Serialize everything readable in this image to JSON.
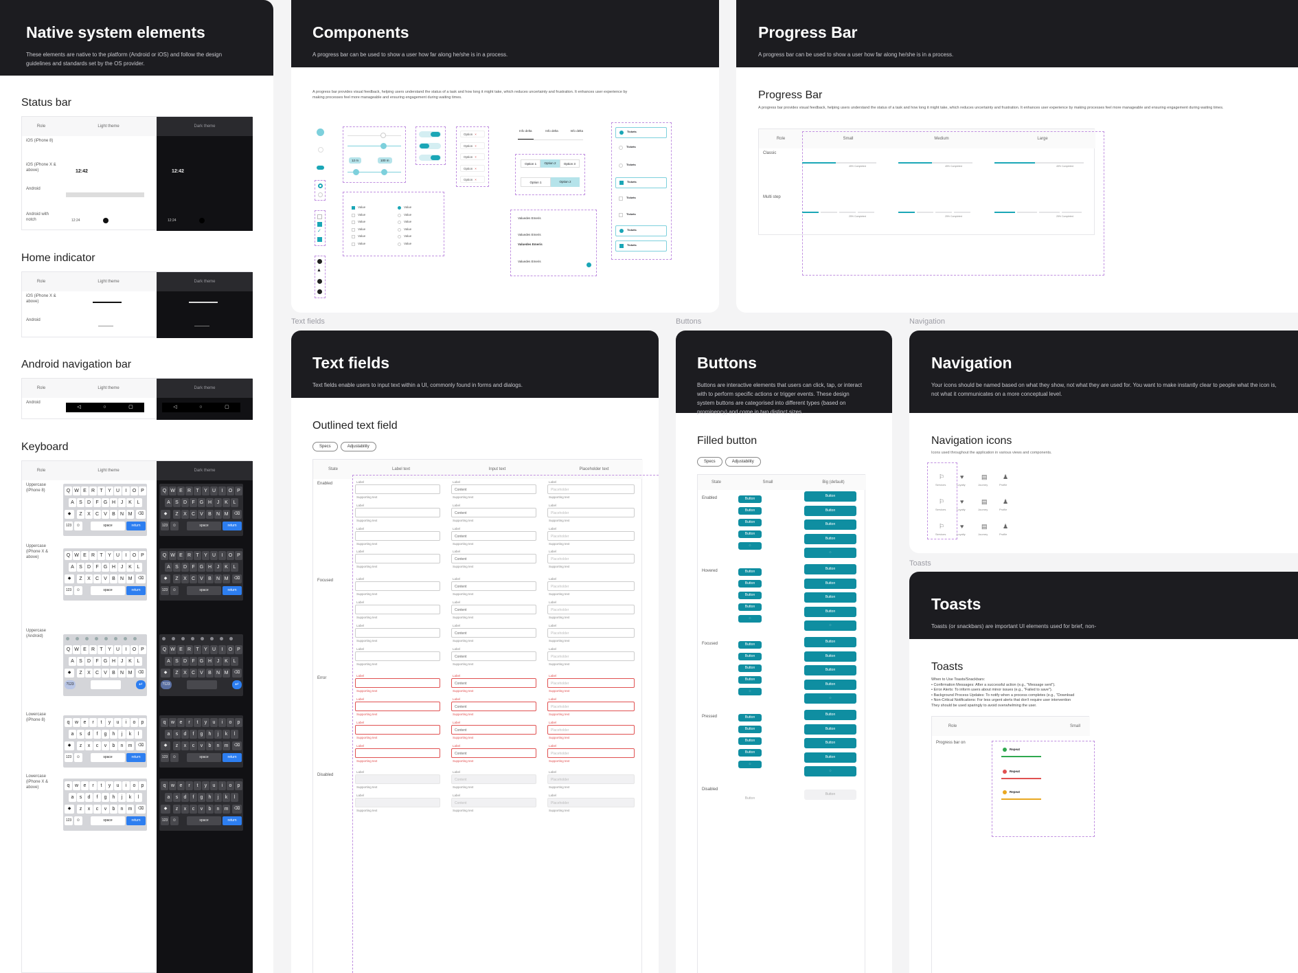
{
  "native": {
    "title": "Native system elements",
    "desc": "These elements are native to the platform (Android or iOS) and follow the design guidelines and standards set by the OS provider.",
    "status_bar": "Status bar",
    "home_indicator": "Home indicator",
    "android_nav": "Android navigation bar",
    "keyboard": "Keyboard",
    "col_role": "Role",
    "col_light": "Light theme",
    "col_dark": "Dark theme",
    "status_rows": [
      "iOS (iPhone 8)",
      "iOS (iPhone X & above)",
      "Android",
      "Android with notch"
    ],
    "home_rows": [
      "iOS (iPhone X & above)",
      "Android"
    ],
    "nav_rows": [
      "Android"
    ],
    "kb_rows": [
      "Uppercase (iPhone 8)",
      "Uppercase (iPhone X & above)",
      "Uppercase (Android)",
      "Lowercase (iPhone 8)",
      "Lowercase (iPhone X & above)"
    ],
    "time_a": "12:42",
    "time_b": "12:24",
    "kb_row1_upper": [
      "Q",
      "W",
      "E",
      "R",
      "T",
      "Y",
      "U",
      "I",
      "O",
      "P"
    ],
    "kb_row2_upper": [
      "A",
      "S",
      "D",
      "F",
      "G",
      "H",
      "J",
      "K",
      "L"
    ],
    "kb_row3_upper": [
      "Z",
      "X",
      "C",
      "V",
      "B",
      "N",
      "M"
    ],
    "kb_row1_lower": [
      "q",
      "w",
      "e",
      "r",
      "t",
      "y",
      "u",
      "i",
      "o",
      "p"
    ],
    "kb_row2_lower": [
      "a",
      "s",
      "d",
      "f",
      "g",
      "h",
      "j",
      "k",
      "l"
    ],
    "kb_row3_lower": [
      "z",
      "x",
      "c",
      "v",
      "b",
      "n",
      "m"
    ],
    "kb_123": "123",
    "kb_space": "space",
    "kb_return": "return",
    "kb_alt": "?123"
  },
  "components": {
    "title": "Components",
    "desc": "A progress bar can be used to show a user how far along he/she is in a process.",
    "body": "A progress bar provides visual feedback, helping users understand the status of a task and how long it might take, which reduces uncertainty and frustration. It enhances user experience by making processes feel more manageable and ensuring engagement during waiting times.",
    "chip_labels": [
      "Option",
      "Option",
      "Option",
      "Option",
      "Option"
    ],
    "tabs": [
      "Info delta",
      "Info delta",
      "Info delta"
    ],
    "seg_a": [
      "Option 1",
      "Option 2",
      "Option 3"
    ],
    "seg_b": [
      "Option 1",
      "Option 2"
    ],
    "value_label": "Value",
    "slider_a": "12 m",
    "slider_b": "100 m",
    "list_title": "Valuedes Emeris",
    "tickets": "Tickets"
  },
  "progress": {
    "title": "Progress Bar",
    "desc": "A progress bar can be used to show a user how far along he/she is in a process.",
    "section": "Progress Bar",
    "body": "A progress bar provides visual feedback, helping users understand the status of a task and how long it might take, which reduces uncertainty and frustration. It enhances user experience by making processes feel more manageable and ensuring engagement during waiting times.",
    "col_role": "Role",
    "cols": [
      "Small",
      "Medium",
      "Large"
    ],
    "rows": [
      "Classic",
      "Multi step"
    ],
    "values": [
      0.45,
      0.45,
      0.45
    ],
    "caption": "45% Completed",
    "step_caption": "25% Completed"
  },
  "labels": {
    "text_fields": "Text fields",
    "buttons": "Buttons",
    "navigation": "Navigation",
    "toasts": "Toasts"
  },
  "textfields": {
    "title": "Text fields",
    "desc": "Text fields enable users to input text within a UI, commonly found in forms and dialogs.",
    "section": "Outlined text field",
    "pill_specs": "Specs",
    "pill_adjust": "Adjustability",
    "cols": [
      "State",
      "Label text",
      "Input text",
      "Placeholder text"
    ],
    "states": [
      "Enabled",
      "Focused",
      "Error",
      "Disabled"
    ],
    "label": "Label",
    "support": "Supporting text",
    "content": "Content",
    "placeholder": "Placeholder"
  },
  "buttons": {
    "title": "Buttons",
    "desc": "Buttons are interactive elements that users can click, tap, or interact with to perform specific actions or trigger events. These design system buttons are categorised into different types (based on prominency) and come in two distinct sizes.",
    "section": "Filled button",
    "pill_specs": "Specs",
    "pill_adjust": "Adjustability",
    "cols": [
      "State",
      "Small",
      "Big (default)"
    ],
    "states": [
      "Enabled",
      "Hovered",
      "Focused",
      "Pressed",
      "Disabled"
    ],
    "btn_label": "Button"
  },
  "navigation": {
    "title": "Navigation",
    "desc": "Your icons should be named based on what they show, not what they are used for. You want to make instantly clear to people what the icon is, not what it communicates on a more conceptual level.",
    "section": "Navigation icons",
    "sub": "Icons used throughout the application in various views and components.",
    "icon_labels": [
      "Services",
      "Loyalty",
      "Journey",
      "Profile"
    ]
  },
  "toasts": {
    "title": "Toasts",
    "desc": "Toasts (or snackbars) are important UI elements used for brief, non-",
    "section": "Toasts",
    "usage_intro": "When to Use Toasts/Snackbars:",
    "usage": [
      "• Confirmation Messages: After a successful action (e.g., \"Message sent\").",
      "• Error Alerts: To inform users about minor issues (e.g., \"Failed to save\").",
      "• Background Process Updates: To notify when a process completes (e.g., \"Download",
      "• Non-Critical Notifications: For less urgent alerts that don't require user intervention"
    ],
    "usage_outro": "They should be used sparingly to avoid overwhelming the user.",
    "col_role": "Role",
    "col_small": "Small",
    "row": "Progress bar on",
    "toast_label": "Repeat"
  },
  "colors": {
    "accent": "#0f8ea1",
    "dark": "#1c1c20",
    "error": "#e05050",
    "warn": "#e9a720",
    "success": "#2fa84f"
  }
}
